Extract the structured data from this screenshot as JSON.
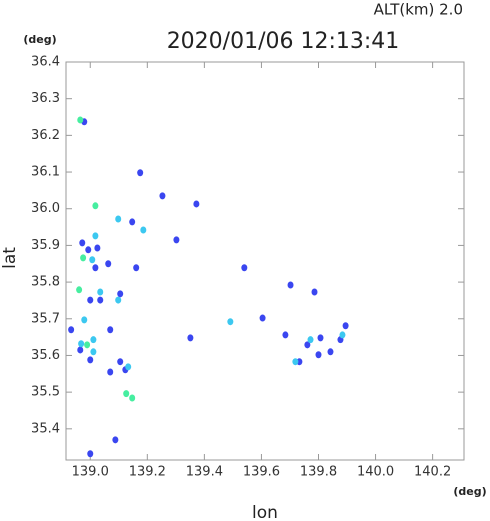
{
  "chart_data": {
    "type": "scatter",
    "title": "2020/01/06 12:13:41",
    "subtitle": "ALT(km) 2.0",
    "x_label": "lon",
    "y_label": "lat",
    "x_unit": "(deg)",
    "y_unit": "(deg)",
    "xlim": [
      138.915,
      140.31
    ],
    "ylim": [
      35.315,
      36.4
    ],
    "xticks": [
      {
        "value": 139,
        "label": "139.0"
      },
      139.2,
      139.4,
      139.6,
      139.8,
      {
        "value": 140,
        "label": "140.0"
      },
      140.2
    ],
    "yticks": [
      35.4,
      35.5,
      35.6,
      35.7,
      35.8,
      35.9,
      {
        "value": 36,
        "label": "36.0"
      },
      36.1,
      36.2,
      36.3,
      36.4
    ],
    "series": [
      {
        "color": "#3a46f0",
        "x": [
          138.979,
          139.175,
          139.253,
          139.372,
          138.972,
          138.993,
          139.025,
          139.063,
          139.147,
          139.302,
          139.105,
          139.0,
          139.035,
          138.933,
          138.965,
          139.0,
          139.07,
          139.105,
          139.123,
          139.088,
          139.0,
          139.351,
          139.604,
          139.684,
          139.786,
          139.8,
          139.842,
          139.877,
          139.895,
          139.761,
          139.733,
          139.807,
          139.07,
          139.161,
          139.018,
          139.54,
          139.702
        ],
        "values": [
          36.237,
          36.098,
          36.035,
          36.013,
          35.907,
          35.888,
          35.893,
          35.85,
          35.964,
          35.915,
          35.768,
          35.751,
          35.751,
          35.67,
          35.615,
          35.588,
          35.555,
          35.583,
          35.561,
          35.37,
          35.332,
          35.648,
          35.702,
          35.656,
          35.773,
          35.602,
          35.61,
          35.643,
          35.681,
          35.629,
          35.583,
          35.648,
          35.67,
          35.839,
          35.839,
          35.839,
          35.792
        ]
      },
      {
        "color": "#3cc8f0",
        "x": [
          139.018,
          139.007,
          139.098,
          139.186,
          139.035,
          139.098,
          138.979,
          139.011,
          138.968,
          139.011,
          139.133,
          139.491,
          139.719,
          139.772,
          139.884
        ],
        "values": [
          35.926,
          35.861,
          35.972,
          35.942,
          35.773,
          35.751,
          35.697,
          35.643,
          35.632,
          35.61,
          35.569,
          35.692,
          35.583,
          35.643,
          35.656
        ]
      },
      {
        "color": "#46eea0",
        "x": [
          138.965,
          139.018,
          138.975,
          138.961,
          138.989,
          139.147,
          139.126
        ],
        "values": [
          36.242,
          36.008,
          35.866,
          35.779,
          35.629,
          35.484,
          35.496
        ]
      }
    ]
  }
}
